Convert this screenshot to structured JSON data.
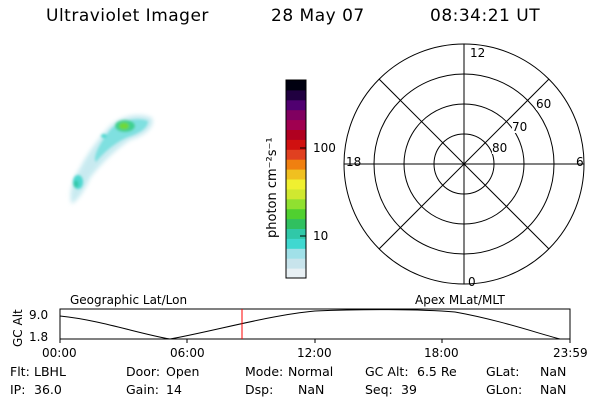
{
  "header": {
    "instrument": "Ultraviolet Imager",
    "date": "28 May 07",
    "time": "08:34:21 UT"
  },
  "colorbar": {
    "unit_label": "photon cm⁻²s⁻¹",
    "ticks": [
      "100",
      "10"
    ],
    "colors": [
      "#e8f0f4",
      "#c8e4ec",
      "#a0e0e8",
      "#40d8d0",
      "#30c8a8",
      "#30c060",
      "#50d030",
      "#90e030",
      "#d0e830",
      "#f0f030",
      "#f0c020",
      "#f08010",
      "#e04020",
      "#d01010",
      "#b00020",
      "#a00050",
      "#800060",
      "#500070",
      "#200040",
      "#000010"
    ]
  },
  "polar": {
    "top_label": "12",
    "bottom_label": "0",
    "left_label": "18",
    "right_label": "6",
    "ring_labels": [
      "60",
      "70",
      "80"
    ]
  },
  "timeline": {
    "left_label": "Geographic Lat/Lon",
    "right_label": "Apex MLat/MLT",
    "y_axis_label": "GC Alt",
    "y_ticks": [
      "9.0",
      "1.8"
    ],
    "x_ticks": [
      "00:00",
      "06:00",
      "12:00",
      "18:00",
      "23:59"
    ],
    "current_time_color": "#ff0000"
  },
  "info": {
    "flt_label": "Flt:",
    "flt_value": "LBHL",
    "ip_label": "IP:",
    "ip_value": "36.0",
    "door_label": "Door:",
    "door_value": "Open",
    "gain_label": "Gain:",
    "gain_value": "14",
    "mode_label": "Mode:",
    "mode_value": "Normal",
    "dsp_label": "Dsp:",
    "dsp_value": "NaN",
    "gcalt_label": "GC Alt:",
    "gcalt_value": "6.5 Re",
    "seq_label": "Seq:",
    "seq_value": "39",
    "glat_label": "GLat:",
    "glat_value": "NaN",
    "glon_label": "GLon:",
    "glon_value": "NaN"
  }
}
